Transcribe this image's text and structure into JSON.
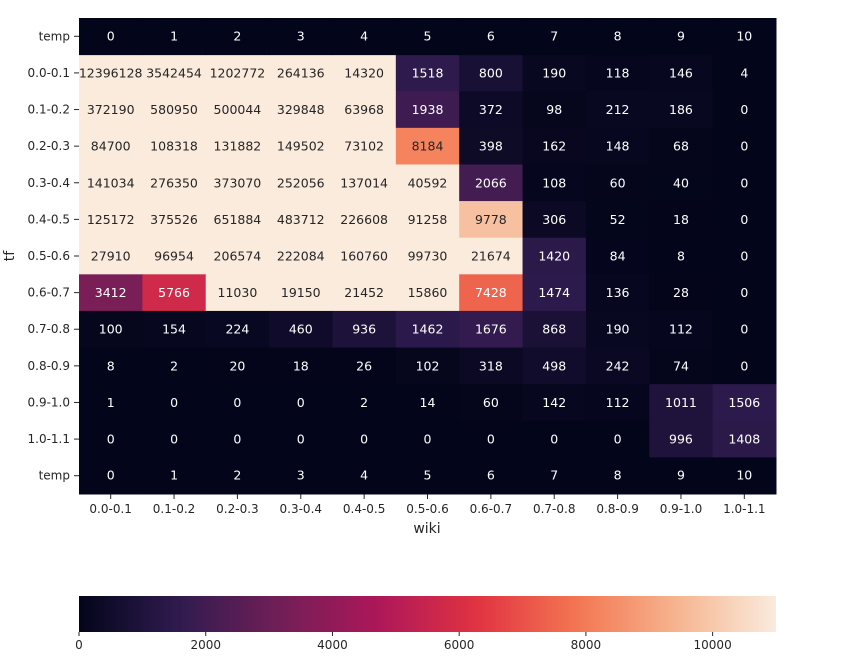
{
  "chart_data": {
    "type": "heatmap",
    "xlabel": "wiki",
    "ylabel": "tf",
    "x_categories": [
      "0.0-0.1",
      "0.1-0.2",
      "0.2-0.3",
      "0.3-0.4",
      "0.4-0.5",
      "0.5-0.6",
      "0.6-0.7",
      "0.7-0.8",
      "0.8-0.9",
      "0.9-1.0",
      "1.0-1.1"
    ],
    "y_categories": [
      "0.0-0.1",
      "0.1-0.2",
      "0.2-0.3",
      "0.3-0.4",
      "0.4-0.5",
      "0.5-0.6",
      "0.6-0.7",
      "0.7-0.8",
      "0.8-0.9",
      "0.9-1.0",
      "1.0-1.1"
    ],
    "top_row_label": "temp",
    "top_row_values": [
      "0",
      "1",
      "2",
      "3",
      "4",
      "5",
      "6",
      "7",
      "8",
      "9",
      "10"
    ],
    "bottom_row_label": "temp",
    "bottom_row_values": [
      "0",
      "1",
      "2",
      "3",
      "4",
      "5",
      "6",
      "7",
      "8",
      "9",
      "10"
    ],
    "values": [
      [
        12396128,
        3542454,
        1202772,
        264136,
        14320,
        1518,
        800,
        190,
        118,
        146,
        4
      ],
      [
        372190,
        580950,
        500044,
        329848,
        63968,
        1938,
        372,
        98,
        212,
        186,
        0
      ],
      [
        84700,
        108318,
        131882,
        149502,
        73102,
        8184,
        398,
        162,
        148,
        68,
        0
      ],
      [
        141034,
        276350,
        373070,
        252056,
        137014,
        40592,
        2066,
        108,
        60,
        40,
        0
      ],
      [
        125172,
        375526,
        651884,
        483712,
        226608,
        91258,
        9778,
        306,
        52,
        18,
        0
      ],
      [
        27910,
        96954,
        206574,
        222084,
        160760,
        99730,
        21674,
        1420,
        84,
        8,
        0
      ],
      [
        3412,
        5766,
        11030,
        19150,
        21452,
        15860,
        7428,
        1474,
        136,
        28,
        0
      ],
      [
        100,
        154,
        224,
        460,
        936,
        1462,
        1676,
        868,
        190,
        112,
        0
      ],
      [
        8,
        2,
        20,
        18,
        26,
        102,
        318,
        498,
        242,
        74,
        0
      ],
      [
        1,
        0,
        0,
        0,
        2,
        14,
        60,
        142,
        112,
        1011,
        1506
      ],
      [
        0,
        0,
        0,
        0,
        0,
        0,
        0,
        0,
        0,
        996,
        1408
      ]
    ],
    "color_range": [
      0,
      11000
    ],
    "colorbar_ticks": [
      0,
      2000,
      4000,
      6000,
      8000,
      10000
    ],
    "colormap_stops": [
      "#03051a",
      "#2f1b4f",
      "#701f57",
      "#ad1759",
      "#e13342",
      "#f37651",
      "#f6b48f",
      "#faebdd"
    ]
  }
}
